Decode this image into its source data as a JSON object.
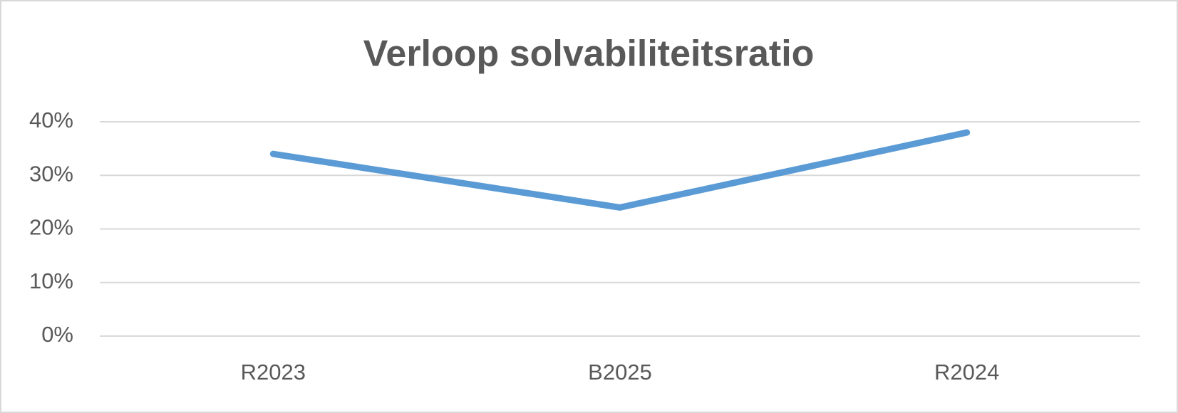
{
  "chart_data": {
    "type": "line",
    "title": "Verloop solvabiliteitsratio",
    "categories": [
      "R2023",
      "B2025",
      "R2024"
    ],
    "series": [
      {
        "color": "#5b9bd5",
        "values": [
          34,
          24,
          38
        ]
      }
    ],
    "ylim": [
      0,
      40
    ],
    "yticks": [
      {
        "value": 0,
        "label": "0%"
      },
      {
        "value": 10,
        "label": "10%"
      },
      {
        "value": 20,
        "label": "20%"
      },
      {
        "value": 30,
        "label": "30%"
      },
      {
        "value": 40,
        "label": "40%"
      }
    ],
    "grid": true
  }
}
